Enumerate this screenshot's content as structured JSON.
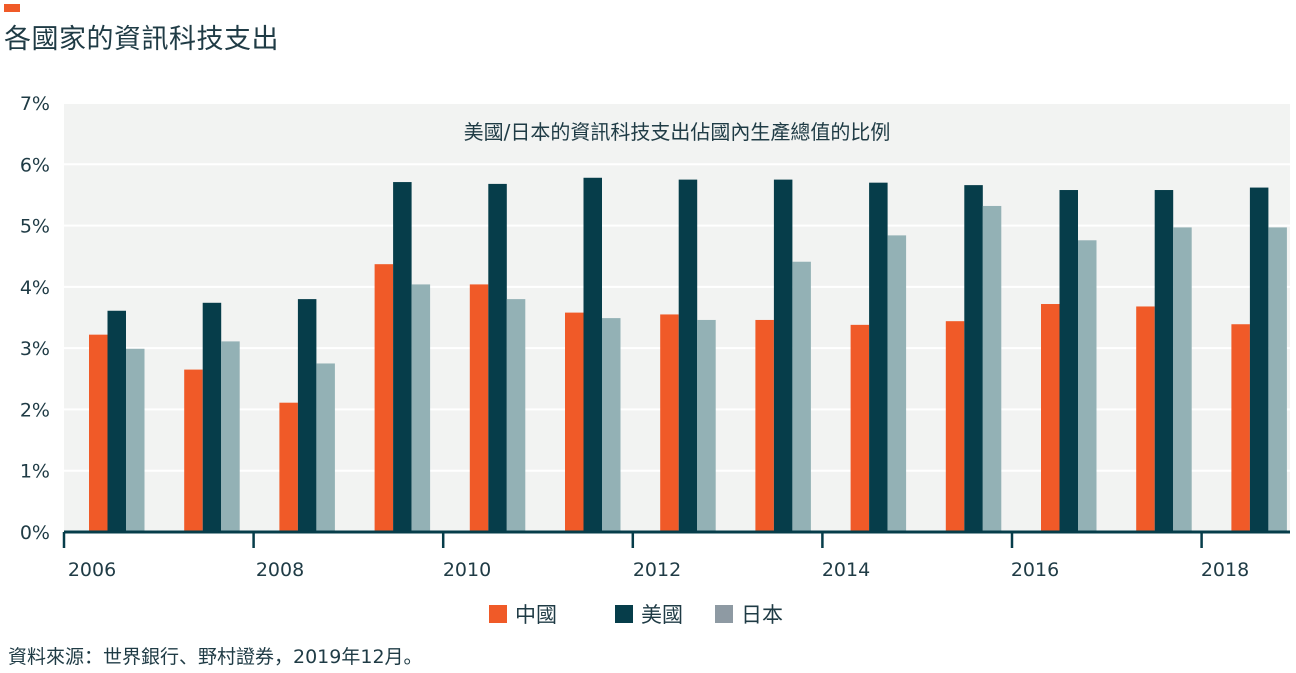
{
  "header": {
    "title": "各國家的資訊科技支出"
  },
  "chart_data": {
    "type": "bar",
    "title": "美國/日本的資訊科技支出佔國內生產總值的比例",
    "xlabel": "",
    "ylabel": "",
    "x_tick_labels": [
      "2006",
      "2008",
      "2010",
      "2012",
      "2014",
      "2016",
      "2018"
    ],
    "categories": [
      "2006",
      "2007",
      "2008",
      "2009",
      "2010",
      "2011",
      "2012",
      "2013",
      "2014",
      "2015",
      "2016",
      "2017",
      "2018"
    ],
    "ylim": [
      0,
      7
    ],
    "y_ticks": [
      0,
      1,
      2,
      3,
      4,
      5,
      6,
      7
    ],
    "y_tick_labels": [
      "0%",
      "1%",
      "2%",
      "3%",
      "4%",
      "5%",
      "6%",
      "7%"
    ],
    "grid": true,
    "legend_position": "bottom",
    "series": [
      {
        "name": "中國",
        "color": "#f05a28",
        "values": [
          3.22,
          2.65,
          2.11,
          4.37,
          4.04,
          3.58,
          3.55,
          3.46,
          3.38,
          3.44,
          3.72,
          3.68,
          3.39
        ]
      },
      {
        "name": "美國",
        "color": "#063d4a",
        "values": [
          3.61,
          3.74,
          3.8,
          5.71,
          5.68,
          5.78,
          5.75,
          5.75,
          5.7,
          5.66,
          5.58,
          5.58,
          5.62
        ]
      },
      {
        "name": "日本",
        "color": "#93b1b5",
        "values": [
          2.99,
          3.11,
          2.75,
          4.04,
          3.8,
          3.49,
          3.46,
          4.41,
          4.84,
          5.32,
          4.76,
          4.97,
          4.97
        ]
      }
    ],
    "legend_swatch_colors": [
      "#f05a28",
      "#063d4a",
      "#8e9aa3"
    ]
  },
  "footer": {
    "source": "資料來源：世界銀行、野村證券，2019年12月。"
  }
}
